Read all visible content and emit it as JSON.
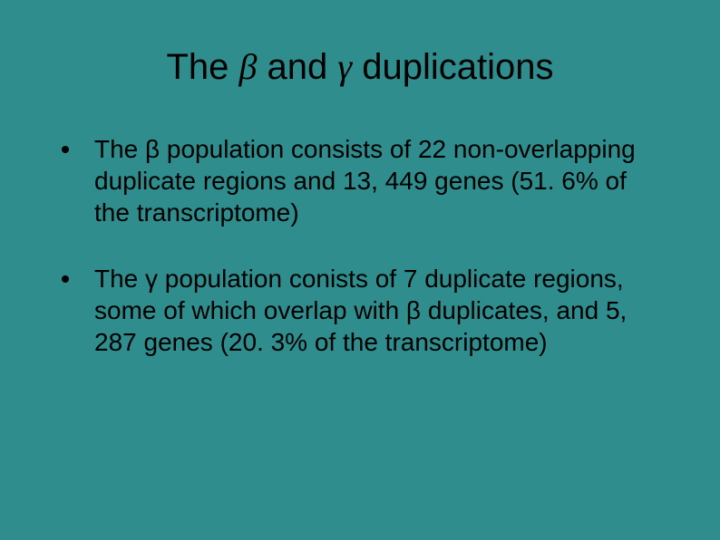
{
  "colors": {
    "background": "#2f8d8d",
    "text": "#000000",
    "bullet": "#000000"
  },
  "typography": {
    "title_fontsize": 40,
    "body_fontsize": 28,
    "font_family": "Arial"
  },
  "slide": {
    "title_pre": "The ",
    "title_beta": "β",
    "title_mid": " and ",
    "title_gamma": "γ",
    "title_post": " duplications",
    "bullets": [
      "The β population consists of 22 non-overlapping duplicate regions and 13, 449 genes (51. 6% of the transcriptome)",
      "The γ population conists of 7 duplicate regions, some of which overlap with β duplicates, and 5, 287 genes (20. 3% of the transcriptome)"
    ]
  }
}
